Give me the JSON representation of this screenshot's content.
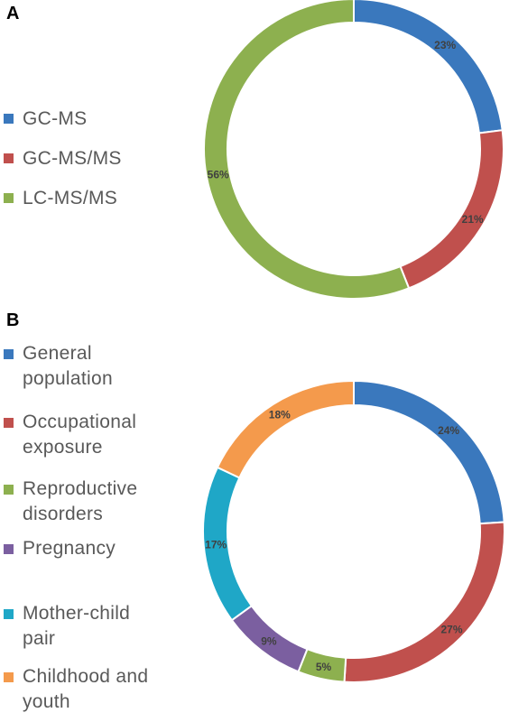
{
  "chart_data": [
    {
      "panel": "A",
      "type": "pie",
      "variant": "donut",
      "series": [
        {
          "name": "GC-MS",
          "value": 23,
          "label": "23%",
          "color": "#3a78bd"
        },
        {
          "name": "GC-MS/MS",
          "value": 21,
          "label": "21%",
          "color": "#c0504d"
        },
        {
          "name": "LC-MS/MS",
          "value": 56,
          "label": "56%",
          "color": "#8db04f"
        }
      ],
      "legend": "left"
    },
    {
      "panel": "B",
      "type": "pie",
      "variant": "donut",
      "series": [
        {
          "name": "General population",
          "value": 24,
          "label": "24%",
          "color": "#3a78bd",
          "lines": [
            "General",
            "population"
          ]
        },
        {
          "name": "Occupational exposure",
          "value": 27,
          "label": "27%",
          "color": "#c0504d",
          "lines": [
            "Occupational",
            "exposure"
          ]
        },
        {
          "name": "Reproductive disorders",
          "value": 5,
          "label": "5%",
          "color": "#8db04f",
          "lines": [
            "Reproductive",
            "disorders"
          ]
        },
        {
          "name": "Pregnancy",
          "value": 9,
          "label": "9%",
          "color": "#7b5fa0",
          "lines": [
            "Pregnancy"
          ]
        },
        {
          "name": "Mother-child pair",
          "value": 17,
          "label": "17%",
          "color": "#1fa7c7",
          "lines": [
            "Mother-child",
            "pair"
          ]
        },
        {
          "name": "Childhood and youth",
          "value": 18,
          "label": "18%",
          "color": "#f49a4c",
          "lines": [
            "Childhood and",
            "youth"
          ]
        }
      ],
      "legend": "left"
    }
  ]
}
